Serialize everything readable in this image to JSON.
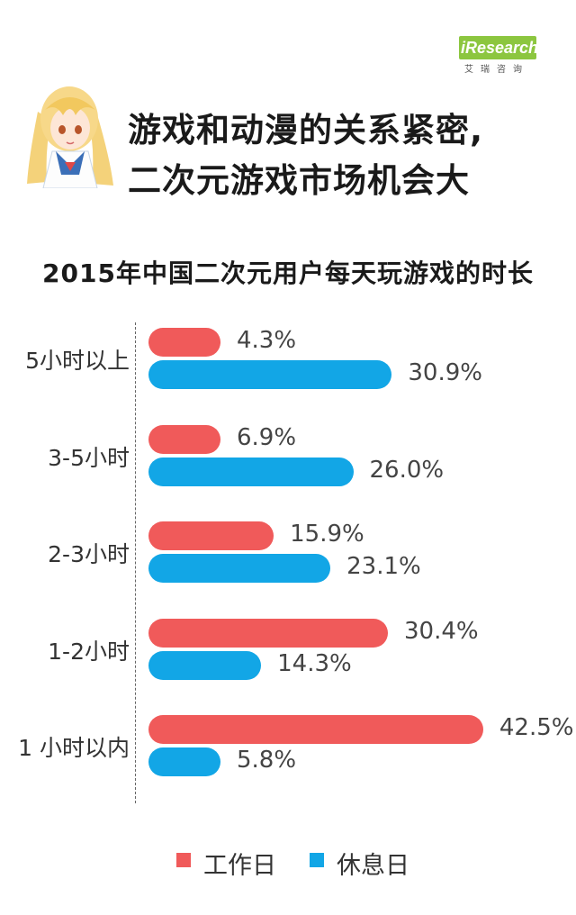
{
  "brand": {
    "logo_text": "iResearch",
    "logo_sub": "艾瑞咨询"
  },
  "headline": {
    "line1": "游戏和动漫的关系紧密,",
    "line2": "二次元游戏市场机会大"
  },
  "colors": {
    "workday": "#f05a5a",
    "restday": "#12a6e6"
  },
  "chart_data": {
    "type": "bar",
    "orientation": "horizontal",
    "title": "2015年中国二次元用户每天玩游戏的时长",
    "unit": "%",
    "categories": [
      "5小时以上",
      "3-5小时",
      "2-3小时",
      "1-2小时",
      "1 小时以内"
    ],
    "series": [
      {
        "name": "工作日",
        "color": "#f05a5a",
        "values": [
          4.3,
          6.9,
          15.9,
          30.4,
          42.5
        ],
        "labels": [
          "4.3%",
          "6.9%",
          "15.9%",
          "30.4%",
          "42.5%"
        ]
      },
      {
        "name": "休息日",
        "color": "#12a6e6",
        "values": [
          30.9,
          26.0,
          23.1,
          14.3,
          5.8
        ],
        "labels": [
          "30.9%",
          "26.0%",
          "23.1%",
          "14.3%",
          "5.8%"
        ]
      }
    ],
    "legend_position": "bottom",
    "grid": false
  }
}
